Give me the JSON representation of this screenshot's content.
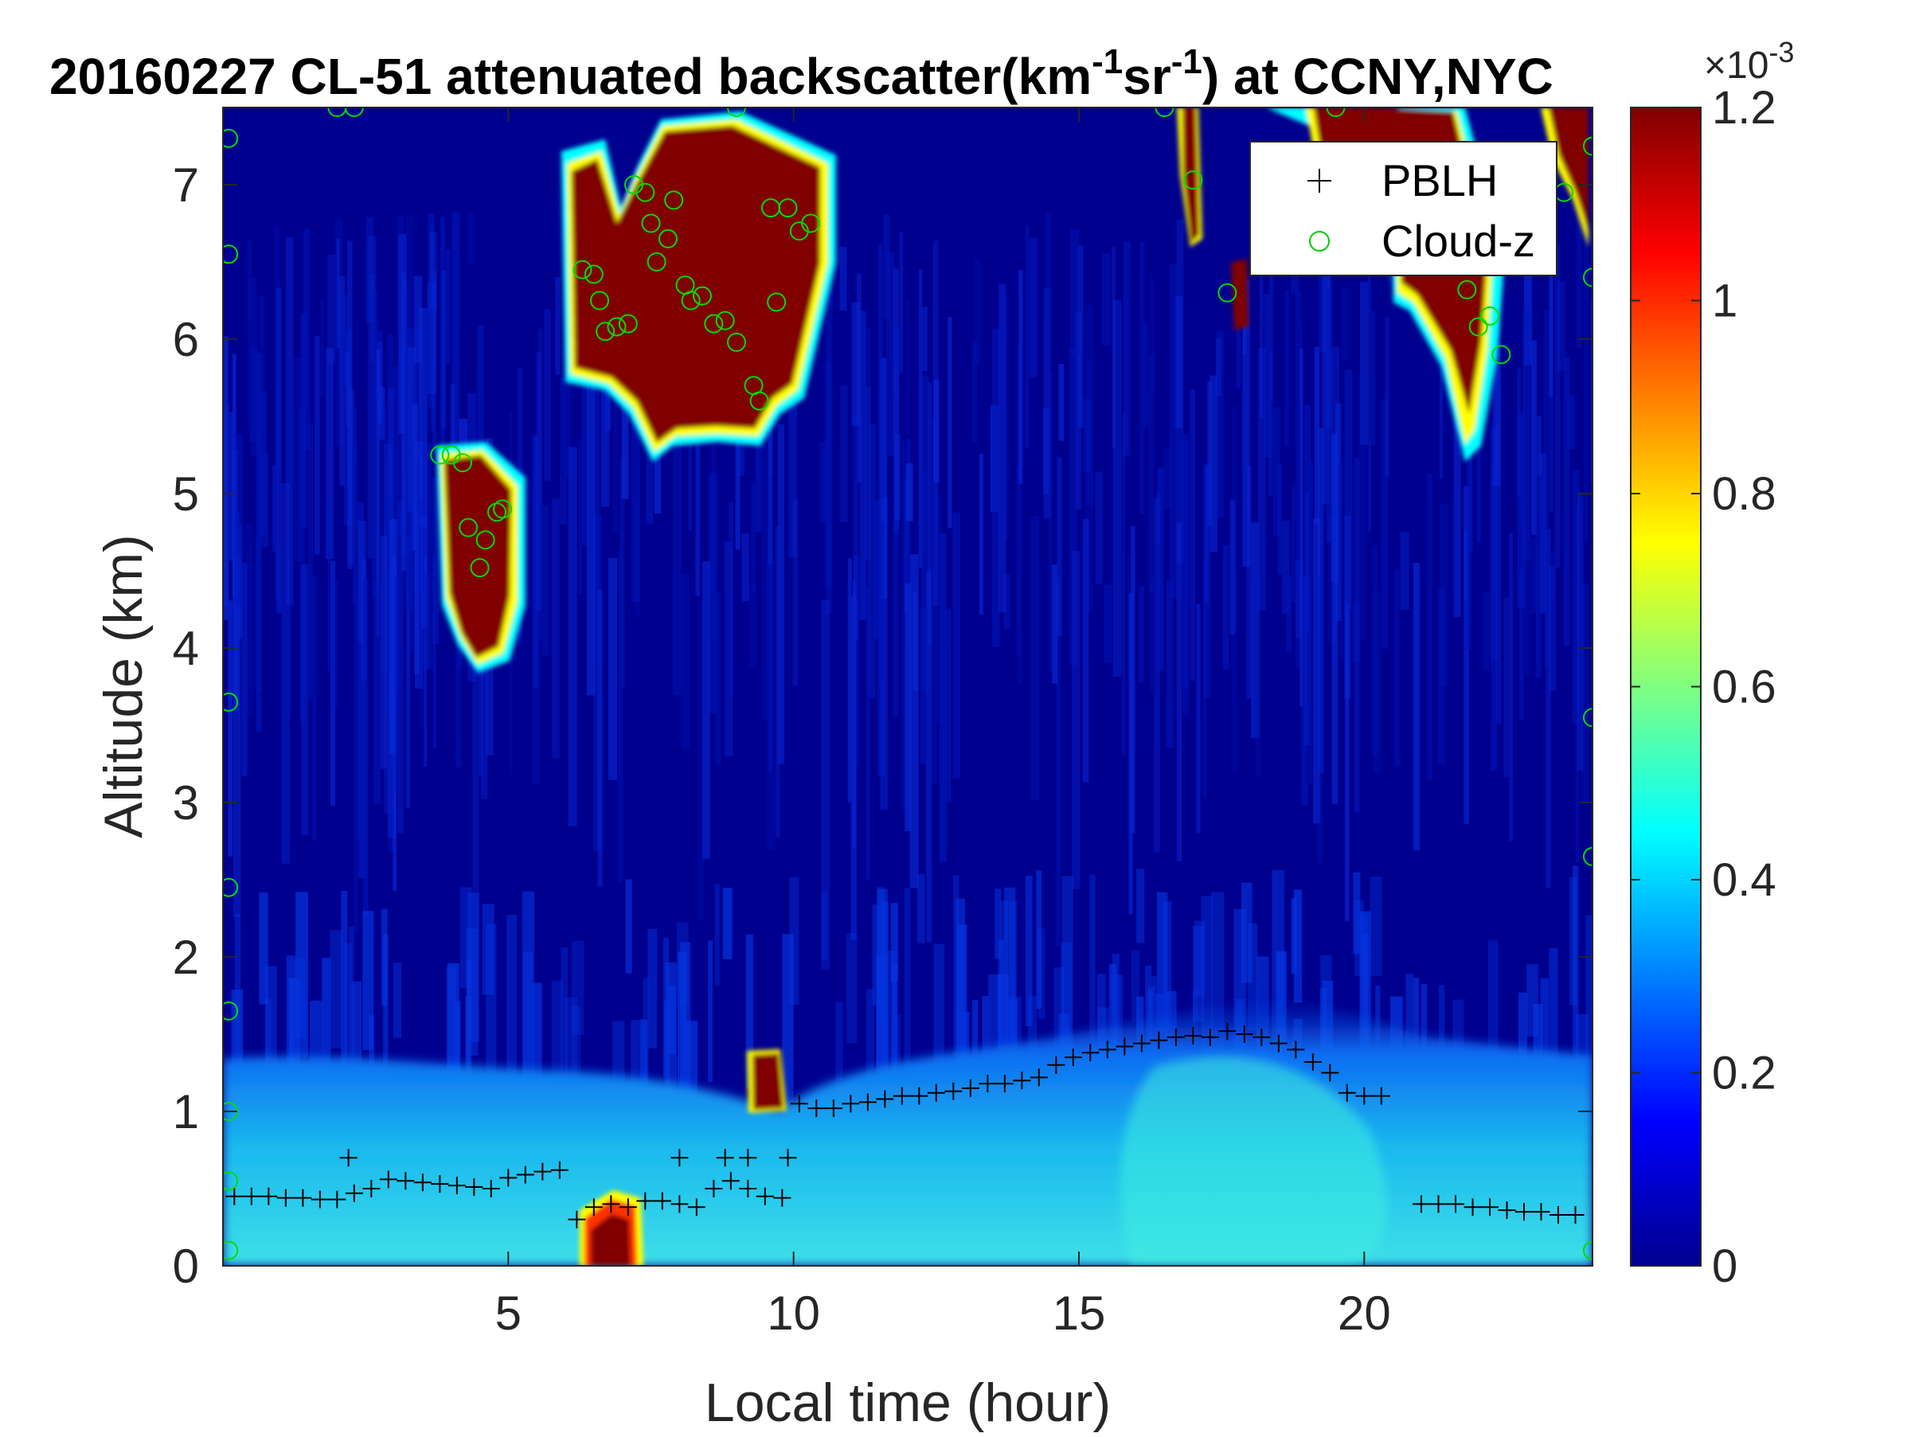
{
  "chart_data": {
    "type": "heatmap",
    "title": "20160227  CL-51 attenuated backscatter(km",
    "title_sup1": "-1",
    "title_mid": "sr",
    "title_sup2": "-1",
    "title_tail": ") at CCNY,NYC",
    "xlabel": "Local time (hour)",
    "ylabel": "Altitude (km)",
    "xlim": [
      0,
      24
    ],
    "ylim": [
      0,
      7.5
    ],
    "xticks": [
      5,
      10,
      15,
      20
    ],
    "yticks": [
      0,
      1,
      2,
      3,
      4,
      5,
      6,
      7
    ],
    "colorbar": {
      "colormap": "jet",
      "range": [
        0,
        0.0012
      ],
      "ticks": [
        0,
        0.2,
        0.4,
        0.6,
        0.8,
        1,
        1.2
      ],
      "exponent_base": "×10",
      "exponent": "-3"
    },
    "legend": {
      "placement": "top-right",
      "entries": [
        {
          "label": "PBLH",
          "marker": "+",
          "color": "#000000"
        },
        {
          "label": "Cloud-z",
          "marker": "o",
          "color": "#00cc00"
        }
      ]
    },
    "series": [
      {
        "name": "PBLH",
        "marker": "+",
        "x": [
          0.2,
          0.5,
          0.8,
          1.1,
          1.4,
          1.7,
          2.0,
          2.3,
          2.6,
          2.9,
          3.2,
          3.5,
          3.8,
          4.1,
          4.4,
          4.7,
          5.0,
          5.3,
          5.6,
          5.9,
          6.2,
          6.5,
          6.8,
          7.1,
          7.4,
          7.7,
          8.0,
          8.3,
          8.6,
          8.9,
          9.2,
          9.5,
          9.8,
          10.1,
          10.4,
          10.7,
          11.0,
          11.3,
          11.6,
          11.9,
          12.2,
          12.5,
          12.8,
          13.1,
          13.4,
          13.7,
          14.0,
          14.3,
          14.6,
          14.9,
          15.2,
          15.5,
          15.8,
          16.1,
          16.4,
          16.7,
          17.0,
          17.3,
          17.6,
          17.9,
          18.2,
          18.5,
          18.8,
          19.1,
          19.4,
          19.7,
          20.0,
          20.3,
          21.0,
          21.3,
          21.6,
          21.9,
          22.2,
          22.5,
          22.8,
          23.1,
          23.4,
          23.7,
          2.2,
          8.0,
          8.8,
          9.2,
          9.9
        ],
        "y": [
          0.45,
          0.45,
          0.45,
          0.44,
          0.44,
          0.43,
          0.43,
          0.47,
          0.5,
          0.56,
          0.55,
          0.54,
          0.53,
          0.52,
          0.51,
          0.5,
          0.57,
          0.59,
          0.61,
          0.62,
          0.3,
          0.38,
          0.4,
          0.38,
          0.42,
          0.42,
          0.4,
          0.38,
          0.5,
          0.55,
          0.5,
          0.45,
          0.44,
          1.05,
          1.02,
          1.02,
          1.05,
          1.06,
          1.08,
          1.1,
          1.1,
          1.12,
          1.13,
          1.15,
          1.18,
          1.18,
          1.2,
          1.22,
          1.3,
          1.35,
          1.38,
          1.4,
          1.42,
          1.44,
          1.46,
          1.48,
          1.49,
          1.48,
          1.52,
          1.5,
          1.48,
          1.44,
          1.4,
          1.32,
          1.25,
          1.12,
          1.1,
          1.1,
          0.4,
          0.4,
          0.4,
          0.38,
          0.38,
          0.36,
          0.35,
          0.35,
          0.33,
          0.33,
          0.7,
          0.7,
          0.7,
          0.7,
          0.7
        ]
      },
      {
        "name": "Cloud-z",
        "marker": "o",
        "x": [
          3.8,
          4.0,
          4.2,
          4.3,
          4.5,
          4.6,
          4.8,
          4.9,
          6.3,
          6.5,
          6.6,
          6.7,
          6.9,
          7.1,
          7.2,
          7.4,
          7.5,
          7.6,
          7.8,
          7.9,
          8.1,
          8.2,
          8.4,
          8.6,
          8.8,
          9.0,
          9.3,
          9.4,
          9.6,
          9.7,
          9.9,
          10.1,
          10.3,
          17.0,
          17.6,
          21.8,
          22.0,
          22.2,
          22.4,
          23.5,
          0.1,
          0.1,
          0.1,
          0.1,
          0.1,
          0.1,
          0.1,
          0.1,
          24.0,
          24.0,
          24.0,
          24.0,
          24.0,
          2.0,
          2.3,
          9.0,
          16.5,
          19.5
        ],
        "y": [
          5.25,
          5.25,
          5.2,
          4.78,
          4.52,
          4.7,
          4.88,
          4.9,
          6.45,
          6.42,
          6.25,
          6.05,
          6.08,
          6.1,
          7.0,
          6.95,
          6.75,
          6.5,
          6.65,
          6.9,
          6.35,
          6.25,
          6.28,
          6.1,
          6.12,
          5.98,
          5.7,
          5.6,
          6.85,
          6.24,
          6.85,
          6.7,
          6.75,
          7.03,
          6.3,
          6.32,
          6.08,
          6.15,
          5.9,
          6.95,
          7.3,
          6.55,
          3.65,
          2.45,
          1.65,
          1.0,
          0.55,
          0.1,
          7.25,
          6.4,
          3.55,
          2.65,
          0.1,
          7.5,
          7.5,
          7.5,
          7.5,
          7.5
        ]
      }
    ]
  }
}
